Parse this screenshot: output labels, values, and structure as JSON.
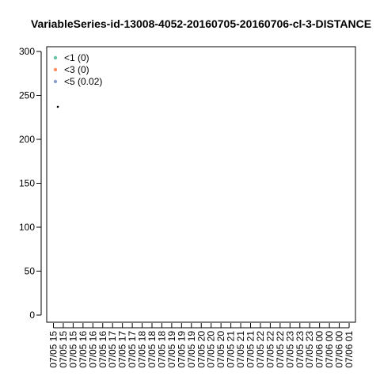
{
  "chart_data": {
    "type": "scatter",
    "title": "VariableSeries-id-13008-4052-20160705-20160706-cl-3-DISTANCE",
    "xlabel": "",
    "ylabel": "",
    "ylim": [
      0,
      300
    ],
    "y_ticks": [
      "0",
      "50",
      "100",
      "150",
      "200",
      "250",
      "300"
    ],
    "x_ticks": [
      "07/05 15",
      "07/05 15",
      "07/05 15",
      "07/05 16",
      "07/05 16",
      "07/05 16",
      "07/05 17",
      "07/05 17",
      "07/05 17",
      "07/05 18",
      "07/05 18",
      "07/05 18",
      "07/05 19",
      "07/05 19",
      "07/05 19",
      "07/05 20",
      "07/05 20",
      "07/05 20",
      "07/05 21",
      "07/05 21",
      "07/05 21",
      "07/05 22",
      "07/05 22",
      "07/05 22",
      "07/05 23",
      "07/05 23",
      "07/05 23",
      "07/06 00",
      "07/06 00",
      "07/06 00",
      "07/06 01"
    ],
    "legend": [
      {
        "label": "<1 (0)",
        "color": "#66c2a5"
      },
      {
        "label": "<3 (0)",
        "color": "#fc8d62"
      },
      {
        "label": "<5 (0.02)",
        "color": "#8da0cb"
      }
    ],
    "legend_position": "top-left",
    "grid": false,
    "points": [
      {
        "x_index": 0,
        "y": 237,
        "color": "#000000"
      }
    ]
  }
}
